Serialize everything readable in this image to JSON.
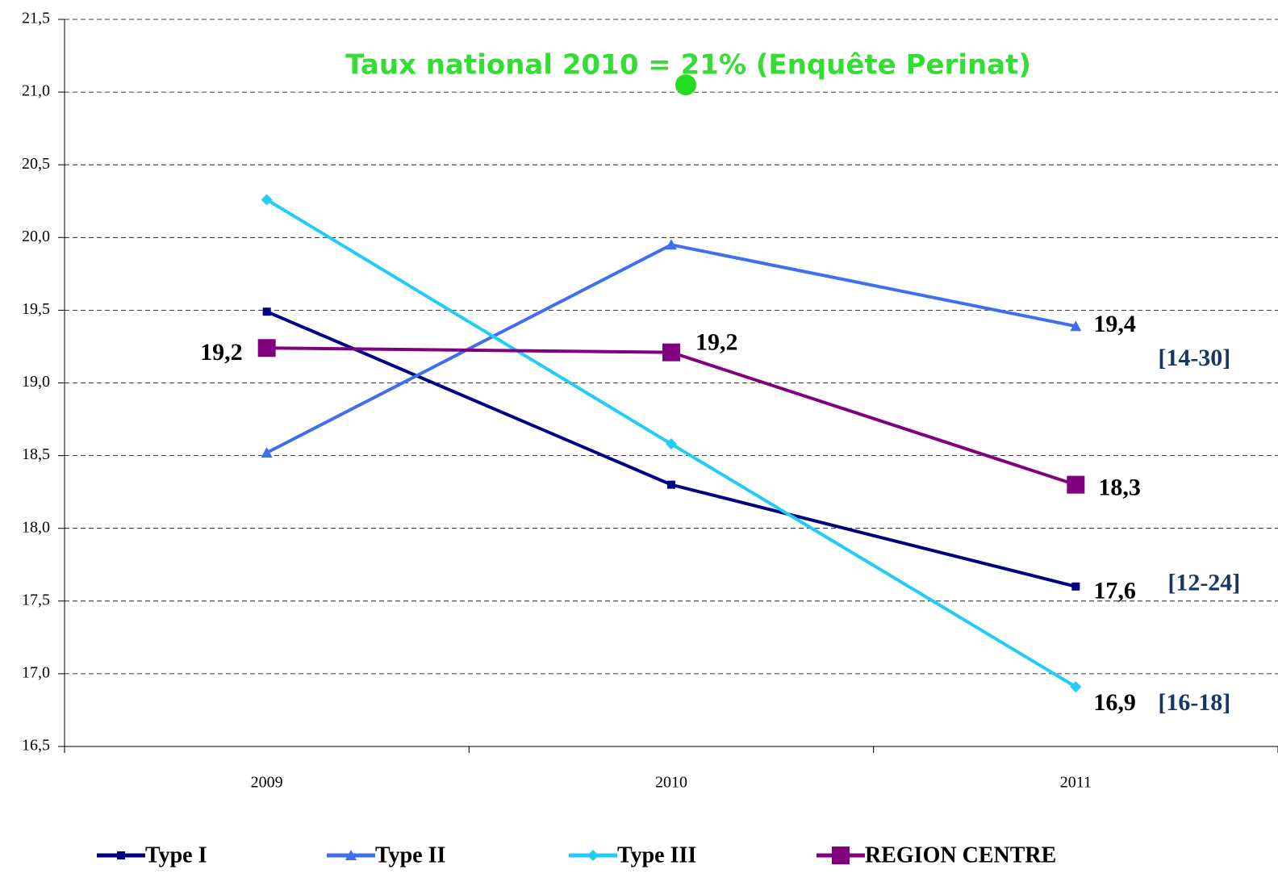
{
  "chart_data": {
    "type": "line",
    "annotation": "Taux national 2010 = 21% (Enquête Perinat)",
    "national_marker": {
      "category": "2010",
      "value": 21.05,
      "color": "#22dd22"
    },
    "categories": [
      "2009",
      "2010",
      "2011"
    ],
    "ylim": [
      16.5,
      21.5
    ],
    "yticks": [
      {
        "value": 16.5,
        "label": "16,5"
      },
      {
        "value": 17.0,
        "label": "17,0"
      },
      {
        "value": 17.5,
        "label": "17,5"
      },
      {
        "value": 18.0,
        "label": "18,0"
      },
      {
        "value": 18.5,
        "label": "18,5"
      },
      {
        "value": 19.0,
        "label": "19,0"
      },
      {
        "value": 19.5,
        "label": "19,5"
      },
      {
        "value": 20.0,
        "label": "20,0"
      },
      {
        "value": 20.5,
        "label": "20,5"
      },
      {
        "value": 21.0,
        "label": "21,0"
      },
      {
        "value": 21.5,
        "label": "21,5"
      }
    ],
    "grid": true,
    "legend": "bottom",
    "series": [
      {
        "name": "Type I",
        "color": "#000080",
        "marker": "square",
        "values": [
          19.49,
          18.3,
          17.6
        ],
        "value_labels": [
          null,
          null,
          "17,6"
        ],
        "range_label": "[12-24]"
      },
      {
        "name": "Type II",
        "color": "#3f6ff0",
        "marker": "triangle",
        "values": [
          18.52,
          19.95,
          19.39
        ],
        "value_labels": [
          null,
          null,
          "19,4"
        ],
        "range_label": "[14-30]"
      },
      {
        "name": "Type III",
        "color": "#22ccf5",
        "marker": "diamond",
        "values": [
          20.26,
          18.58,
          16.91
        ],
        "value_labels": [
          null,
          null,
          "16,9"
        ],
        "range_label": "[16-18]"
      },
      {
        "name": "REGION CENTRE",
        "color": "#800080",
        "marker": "bigsquare",
        "values": [
          19.24,
          19.21,
          18.3
        ],
        "value_labels": [
          "19,2",
          "19,2",
          "18,3"
        ]
      }
    ]
  }
}
